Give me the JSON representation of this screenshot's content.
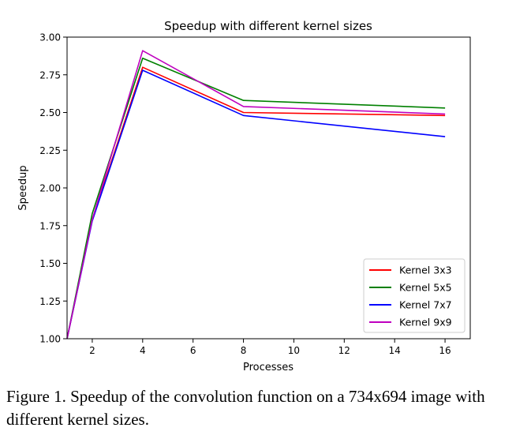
{
  "chart_data": {
    "type": "line",
    "title": "Speedup with different kernel sizes",
    "xlabel": "Processes",
    "ylabel": "Speedup",
    "xlim": [
      1,
      17
    ],
    "ylim": [
      1.0,
      3.0
    ],
    "x_ticks": [
      2,
      4,
      6,
      8,
      10,
      12,
      14,
      16
    ],
    "y_ticks": [
      "1.00",
      "1.25",
      "1.50",
      "1.75",
      "2.00",
      "2.25",
      "2.50",
      "2.75",
      "3.00"
    ],
    "grid": false,
    "legend_position": "lower-right",
    "x": [
      1,
      2,
      4,
      8,
      16
    ],
    "series": [
      {
        "name": "Kernel 3x3",
        "color": "#ff0000",
        "values": [
          1.0,
          1.79,
          2.8,
          2.5,
          2.48
        ]
      },
      {
        "name": "Kernel 5x5",
        "color": "#008000",
        "values": [
          1.0,
          1.83,
          2.86,
          2.58,
          2.53
        ]
      },
      {
        "name": "Kernel 7x7",
        "color": "#0000ff",
        "values": [
          1.0,
          1.78,
          2.78,
          2.48,
          2.34
        ]
      },
      {
        "name": "Kernel 9x9",
        "color": "#bf00bf",
        "values": [
          1.0,
          1.79,
          2.91,
          2.54,
          2.49
        ]
      }
    ]
  },
  "caption": "Figure 1. Speedup of the convolution function on a 734x694 image with different kernel sizes."
}
